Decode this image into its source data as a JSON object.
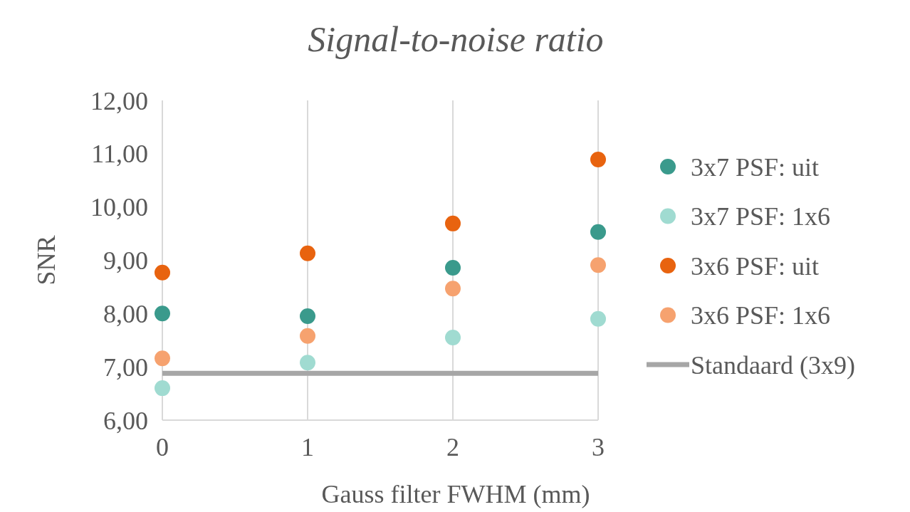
{
  "chart_data": {
    "type": "scatter",
    "title": "Signal-to-noise ratio",
    "xlabel": "Gauss filter FWHM (mm)",
    "ylabel": "SNR",
    "x": [
      0,
      1,
      2,
      3
    ],
    "xlim": [
      0,
      3
    ],
    "xticks": [
      0,
      1,
      2,
      3
    ],
    "ylim": [
      6,
      12
    ],
    "yticks": [
      {
        "value": 6,
        "label": "6,00"
      },
      {
        "value": 7,
        "label": "7,00"
      },
      {
        "value": 8,
        "label": "8,00"
      },
      {
        "value": 9,
        "label": "9,00"
      },
      {
        "value": 10,
        "label": "10,00"
      },
      {
        "value": 11,
        "label": "11,00"
      },
      {
        "value": 12,
        "label": "12,00"
      }
    ],
    "grid": "x",
    "legend": "right",
    "marker": "circle",
    "series": [
      {
        "name": "3x7 PSF: uit",
        "color": "#3a9a8c",
        "values": [
          8.0,
          7.95,
          8.86,
          9.53
        ]
      },
      {
        "name": "3x7 PSF: 1x6",
        "color": "#a0dbd1",
        "values": [
          6.6,
          7.08,
          7.55,
          7.9
        ]
      },
      {
        "name": "3x6 PSF: uit",
        "color": "#e8630f",
        "values": [
          8.77,
          9.13,
          9.69,
          10.89
        ]
      },
      {
        "name": "3x6 PSF: 1x6",
        "color": "#f6a26f",
        "values": [
          7.16,
          7.58,
          8.47,
          8.91
        ]
      },
      {
        "name": "Standaard (3x9)",
        "type": "line",
        "color": "#a6a6a6",
        "marker": "none",
        "values": [
          6.88,
          6.88,
          6.88,
          6.88
        ]
      }
    ]
  }
}
